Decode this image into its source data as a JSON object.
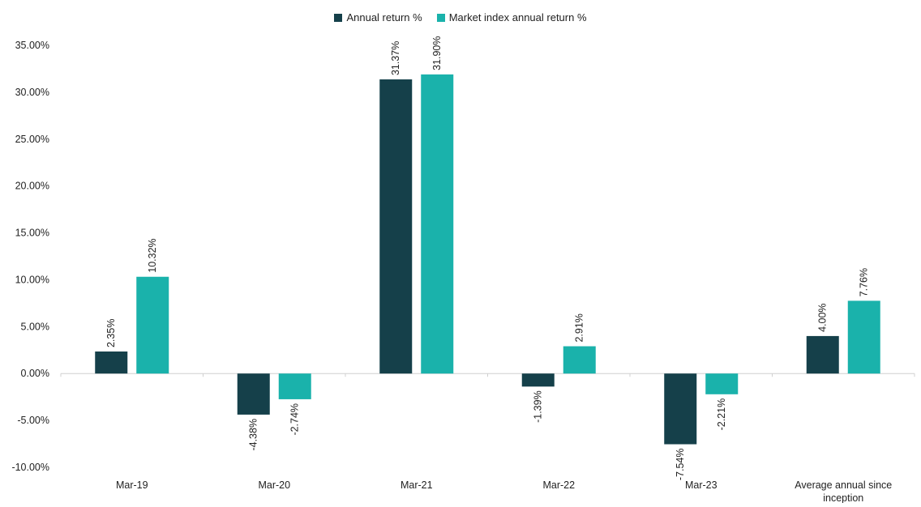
{
  "chart_data": {
    "type": "bar",
    "categories": [
      "Mar-19",
      "Mar-20",
      "Mar-21",
      "Mar-22",
      "Mar-23",
      "Average annual since inception"
    ],
    "series": [
      {
        "name": "Annual return %",
        "values": [
          2.35,
          -4.38,
          31.37,
          -1.39,
          -7.54,
          4.0
        ],
        "labels": [
          "2.35%",
          "-4.38%",
          "31.37%",
          "-1.39%",
          "-7.54%",
          "4.00%"
        ],
        "color": "#15404a"
      },
      {
        "name": "Market index annual return %",
        "values": [
          10.32,
          -2.74,
          31.9,
          2.91,
          -2.21,
          7.76
        ],
        "labels": [
          "10.32%",
          "-2.74%",
          "31.90%",
          "2.91%",
          "-2.21%",
          "7.76%"
        ],
        "color": "#1ab2ab"
      }
    ],
    "yticks": [
      "35.00%",
      "30.00%",
      "25.00%",
      "20.00%",
      "15.00%",
      "10.00%",
      "5.00%",
      "0.00%",
      "-5.00%",
      "-10.00%"
    ],
    "ylim": [
      -10,
      35
    ],
    "title": "",
    "xlabel": "",
    "ylabel": "",
    "legend_position": "top-center",
    "grid": false
  }
}
